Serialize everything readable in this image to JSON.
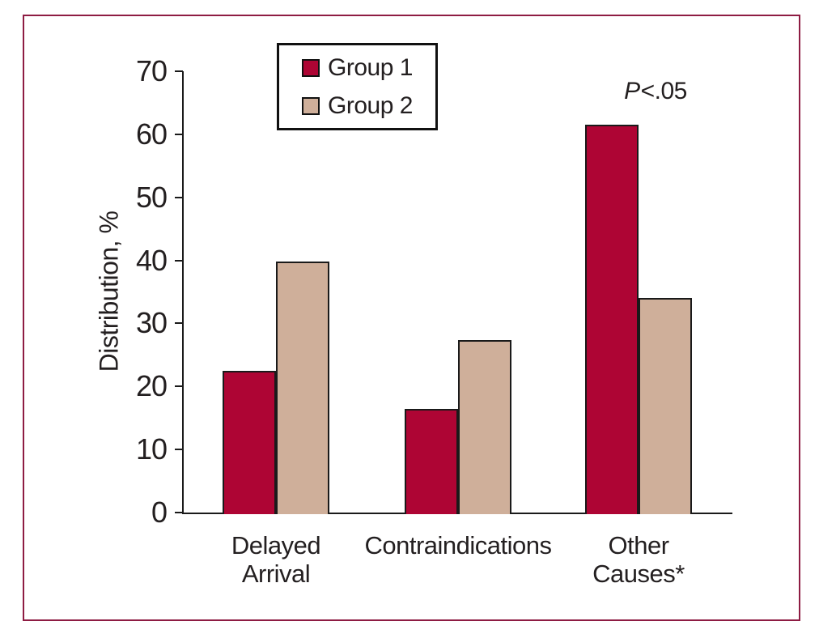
{
  "figure": {
    "frame_color": "#8E1C43",
    "background": "#FFFFFF",
    "axis_color": "#1A1A1A",
    "text_color": "#231F20",
    "ylabel": "Distribution, %",
    "annotation": {
      "p_italic": "P",
      "p_rest": "<.05"
    }
  },
  "legend": {
    "items": [
      {
        "label": "Group 1",
        "color": "#AE0534"
      },
      {
        "label": "Group 2",
        "color": "#CFAF9A"
      }
    ]
  },
  "chart_data": {
    "type": "bar",
    "title": "",
    "xlabel": "",
    "ylabel": "Distribution, %",
    "ylim": [
      0,
      70
    ],
    "yticks": [
      0,
      10,
      20,
      30,
      40,
      50,
      60,
      70
    ],
    "grid": false,
    "legend_position": "top-left-inside",
    "categories": [
      "Delayed Arrival",
      "Contraindications",
      "Other Causes*"
    ],
    "category_lines": [
      [
        "Delayed",
        "Arrival"
      ],
      [
        "Contraindications"
      ],
      [
        "Other",
        "Causes*"
      ]
    ],
    "series": [
      {
        "name": "Group 1",
        "color": "#AE0534",
        "values": [
          22.5,
          16.5,
          61.5
        ]
      },
      {
        "name": "Group 2",
        "color": "#CFAF9A",
        "values": [
          39.8,
          27.4,
          34.0
        ]
      }
    ],
    "annotations": [
      {
        "text": "P<.05",
        "target": "Other Causes*"
      }
    ]
  }
}
